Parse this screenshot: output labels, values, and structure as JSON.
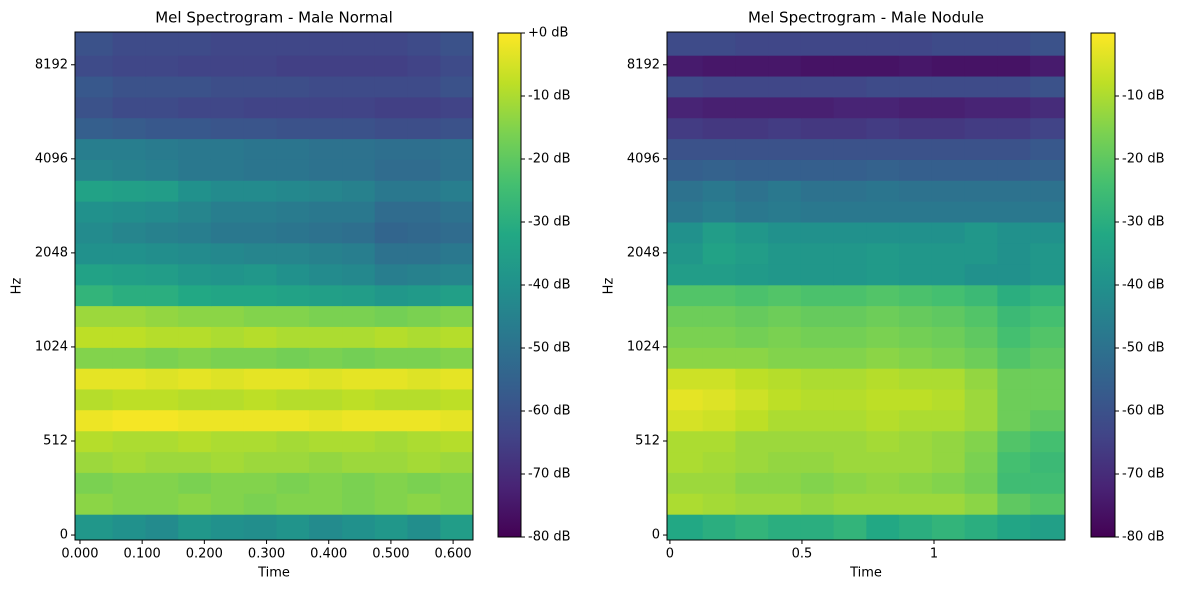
{
  "chart_data": [
    {
      "type": "heatmap",
      "title": "Mel Spectrogram - Male Normal",
      "xlabel": "Time",
      "ylabel": "Hz",
      "colormap": "viridis",
      "yscale": "symlog",
      "linthresh": 512,
      "x": [
        0.026,
        0.079,
        0.132,
        0.184,
        0.237,
        0.29,
        0.342,
        0.395,
        0.448,
        0.5,
        0.553,
        0.606
      ],
      "y": [
        56,
        171,
        284,
        398,
        510,
        597,
        696,
        811,
        945,
        1103,
        1286,
        1499,
        1748,
        2043,
        2381,
        2777,
        3238,
        3776,
        4403,
        5134,
        5987,
        6982,
        8142,
        9494
      ],
      "values": [
        [
          -38,
          -40,
          -42,
          -38,
          -40,
          -41,
          -39,
          -42,
          -40,
          -38,
          -41,
          -36
        ],
        [
          -14,
          -15,
          -15,
          -14,
          -15,
          -16,
          -15,
          -15,
          -16,
          -15,
          -14,
          -15
        ],
        [
          -16,
          -15,
          -15,
          -16,
          -15,
          -15,
          -16,
          -15,
          -16,
          -15,
          -16,
          -15
        ],
        [
          -12,
          -11,
          -12,
          -12,
          -11,
          -12,
          -12,
          -13,
          -12,
          -12,
          -11,
          -12
        ],
        [
          -9,
          -10,
          -10,
          -9,
          -10,
          -10,
          -11,
          -10,
          -10,
          -11,
          -10,
          -9
        ],
        [
          -2,
          -1,
          -1,
          -2,
          -2,
          -2,
          -2,
          -3,
          -2,
          -2,
          -2,
          -3
        ],
        [
          -9,
          -8,
          -8,
          -9,
          -9,
          -8,
          -9,
          -9,
          -8,
          -9,
          -9,
          -8
        ],
        [
          -3,
          -3,
          -4,
          -3,
          -4,
          -3,
          -3,
          -4,
          -3,
          -3,
          -4,
          -3
        ],
        [
          -15,
          -15,
          -16,
          -15,
          -16,
          -16,
          -17,
          -16,
          -17,
          -16,
          -16,
          -15
        ],
        [
          -8,
          -8,
          -9,
          -9,
          -10,
          -9,
          -10,
          -10,
          -10,
          -9,
          -10,
          -9
        ],
        [
          -12,
          -12,
          -13,
          -14,
          -14,
          -15,
          -15,
          -16,
          -16,
          -17,
          -16,
          -15
        ],
        [
          -28,
          -30,
          -30,
          -32,
          -33,
          -33,
          -34,
          -35,
          -36,
          -38,
          -37,
          -35
        ],
        [
          -34,
          -35,
          -36,
          -38,
          -39,
          -38,
          -40,
          -42,
          -43,
          -46,
          -45,
          -44
        ],
        [
          -40,
          -40,
          -41,
          -42,
          -43,
          -44,
          -44,
          -45,
          -46,
          -50,
          -50,
          -48
        ],
        [
          -42,
          -44,
          -45,
          -46,
          -48,
          -48,
          -49,
          -50,
          -51,
          -54,
          -53,
          -52
        ],
        [
          -40,
          -41,
          -42,
          -44,
          -46,
          -46,
          -47,
          -48,
          -48,
          -52,
          -52,
          -50
        ],
        [
          -34,
          -35,
          -36,
          -40,
          -42,
          -42,
          -43,
          -44,
          -45,
          -48,
          -48,
          -46
        ],
        [
          -44,
          -45,
          -46,
          -48,
          -48,
          -49,
          -49,
          -50,
          -50,
          -52,
          -52,
          -50
        ],
        [
          -46,
          -46,
          -47,
          -48,
          -48,
          -49,
          -49,
          -50,
          -50,
          -51,
          -51,
          -50
        ],
        [
          -56,
          -57,
          -58,
          -58,
          -59,
          -59,
          -60,
          -60,
          -60,
          -61,
          -61,
          -60
        ],
        [
          -60,
          -62,
          -62,
          -63,
          -63,
          -64,
          -64,
          -64,
          -64,
          -65,
          -65,
          -64
        ],
        [
          -58,
          -60,
          -60,
          -60,
          -61,
          -61,
          -61,
          -62,
          -62,
          -62,
          -62,
          -60
        ],
        [
          -62,
          -63,
          -63,
          -64,
          -64,
          -64,
          -65,
          -65,
          -65,
          -65,
          -64,
          -62
        ],
        [
          -60,
          -62,
          -62,
          -62,
          -63,
          -63,
          -63,
          -63,
          -63,
          -63,
          -62,
          -60
        ]
      ],
      "xlim": [
        -0.008,
        0.632
      ],
      "ylim": [
        -27,
        10430
      ],
      "xticks": [
        {
          "value": 0,
          "label": "0.000"
        },
        {
          "value": 0.1,
          "label": "0.100"
        },
        {
          "value": 0.2,
          "label": "0.200"
        },
        {
          "value": 0.3,
          "label": "0.300"
        },
        {
          "value": 0.4,
          "label": "0.400"
        },
        {
          "value": 0.5,
          "label": "0.500"
        },
        {
          "value": 0.6,
          "label": "0.600"
        }
      ],
      "yticks": [
        0,
        512,
        1024,
        2048,
        4096,
        8192
      ],
      "clim": [
        -80,
        0
      ],
      "cticks": [
        {
          "value": 0,
          "label": "+0 dB"
        },
        {
          "value": -10,
          "label": "-10 dB"
        },
        {
          "value": -20,
          "label": "-20 dB"
        },
        {
          "value": -30,
          "label": "-30 dB"
        },
        {
          "value": -40,
          "label": "-40 dB"
        },
        {
          "value": -50,
          "label": "-50 dB"
        },
        {
          "value": -60,
          "label": "-60 dB"
        },
        {
          "value": -70,
          "label": "-70 dB"
        },
        {
          "value": -80,
          "label": "-80 dB"
        }
      ]
    },
    {
      "type": "heatmap",
      "title": "Mel Spectrogram - Male Nodule",
      "xlabel": "Time",
      "ylabel": "Hz",
      "colormap": "viridis",
      "yscale": "symlog",
      "linthresh": 512,
      "x": [
        0.062,
        0.186,
        0.31,
        0.434,
        0.558,
        0.682,
        0.806,
        0.93,
        1.054,
        1.178,
        1.302,
        1.426
      ],
      "y": [
        56,
        171,
        284,
        398,
        510,
        597,
        696,
        811,
        945,
        1103,
        1286,
        1499,
        1748,
        2043,
        2381,
        2777,
        3238,
        3776,
        4403,
        5134,
        5987,
        6982,
        8142,
        9494
      ],
      "values": [
        [
          -32,
          -30,
          -28,
          -30,
          -30,
          -28,
          -32,
          -30,
          -28,
          -30,
          -33,
          -35
        ],
        [
          -10,
          -11,
          -12,
          -12,
          -13,
          -12,
          -12,
          -12,
          -12,
          -14,
          -20,
          -22
        ],
        [
          -12,
          -12,
          -14,
          -14,
          -15,
          -14,
          -13,
          -14,
          -15,
          -17,
          -25,
          -25
        ],
        [
          -10,
          -11,
          -12,
          -13,
          -13,
          -12,
          -12,
          -12,
          -13,
          -16,
          -24,
          -26
        ],
        [
          -10,
          -10,
          -12,
          -12,
          -12,
          -12,
          -11,
          -12,
          -13,
          -15,
          -22,
          -24
        ],
        [
          -5,
          -6,
          -8,
          -10,
          -10,
          -10,
          -9,
          -10,
          -10,
          -12,
          -18,
          -20
        ],
        [
          -3,
          -4,
          -6,
          -8,
          -9,
          -9,
          -8,
          -8,
          -9,
          -12,
          -18,
          -18
        ],
        [
          -6,
          -6,
          -8,
          -9,
          -10,
          -10,
          -9,
          -10,
          -10,
          -13,
          -18,
          -18
        ],
        [
          -14,
          -14,
          -14,
          -15,
          -15,
          -15,
          -14,
          -15,
          -16,
          -18,
          -22,
          -20
        ],
        [
          -16,
          -16,
          -17,
          -16,
          -17,
          -17,
          -16,
          -17,
          -18,
          -20,
          -24,
          -22
        ],
        [
          -18,
          -18,
          -19,
          -18,
          -19,
          -19,
          -18,
          -19,
          -20,
          -22,
          -26,
          -24
        ],
        [
          -22,
          -22,
          -23,
          -22,
          -23,
          -23,
          -22,
          -23,
          -24,
          -26,
          -30,
          -28
        ],
        [
          -36,
          -36,
          -37,
          -38,
          -38,
          -38,
          -37,
          -38,
          -38,
          -40,
          -40,
          -38
        ],
        [
          -38,
          -34,
          -36,
          -38,
          -38,
          -38,
          -37,
          -38,
          -38,
          -38,
          -40,
          -38
        ],
        [
          -40,
          -36,
          -38,
          -40,
          -40,
          -40,
          -40,
          -40,
          -40,
          -38,
          -40,
          -40
        ],
        [
          -48,
          -46,
          -48,
          -47,
          -48,
          -48,
          -48,
          -48,
          -48,
          -48,
          -48,
          -48
        ],
        [
          -50,
          -48,
          -50,
          -48,
          -50,
          -50,
          -49,
          -50,
          -50,
          -50,
          -50,
          -50
        ],
        [
          -56,
          -55,
          -56,
          -56,
          -56,
          -56,
          -55,
          -56,
          -56,
          -56,
          -56,
          -55
        ],
        [
          -60,
          -60,
          -60,
          -60,
          -60,
          -60,
          -60,
          -60,
          -60,
          -60,
          -60,
          -58
        ],
        [
          -66,
          -67,
          -67,
          -66,
          -67,
          -67,
          -66,
          -67,
          -67,
          -66,
          -66,
          -64
        ],
        [
          -72,
          -73,
          -73,
          -73,
          -73,
          -72,
          -72,
          -73,
          -73,
          -72,
          -72,
          -70
        ],
        [
          -62,
          -63,
          -63,
          -63,
          -63,
          -63,
          -62,
          -62,
          -62,
          -62,
          -62,
          -60
        ],
        [
          -74,
          -75,
          -75,
          -75,
          -76,
          -76,
          -76,
          -75,
          -76,
          -76,
          -76,
          -74
        ],
        [
          -62,
          -62,
          -63,
          -63,
          -63,
          -63,
          -63,
          -63,
          -62,
          -62,
          -62,
          -60
        ]
      ],
      "xlim": [
        -0.011,
        1.496
      ],
      "ylim": [
        -27,
        10430
      ],
      "xticks": [
        0,
        0.5,
        1
      ],
      "yticks": [
        0,
        512,
        1024,
        2048,
        4096,
        8192
      ],
      "clim": [
        -80,
        0
      ],
      "cticks": [
        {
          "value": -10,
          "label": "-10 dB"
        },
        {
          "value": -20,
          "label": "-20 dB"
        },
        {
          "value": -30,
          "label": "-30 dB"
        },
        {
          "value": -40,
          "label": "-40 dB"
        },
        {
          "value": -50,
          "label": "-50 dB"
        },
        {
          "value": -60,
          "label": "-60 dB"
        },
        {
          "value": -70,
          "label": "-70 dB"
        },
        {
          "value": -80,
          "label": "-80 dB"
        }
      ]
    }
  ]
}
